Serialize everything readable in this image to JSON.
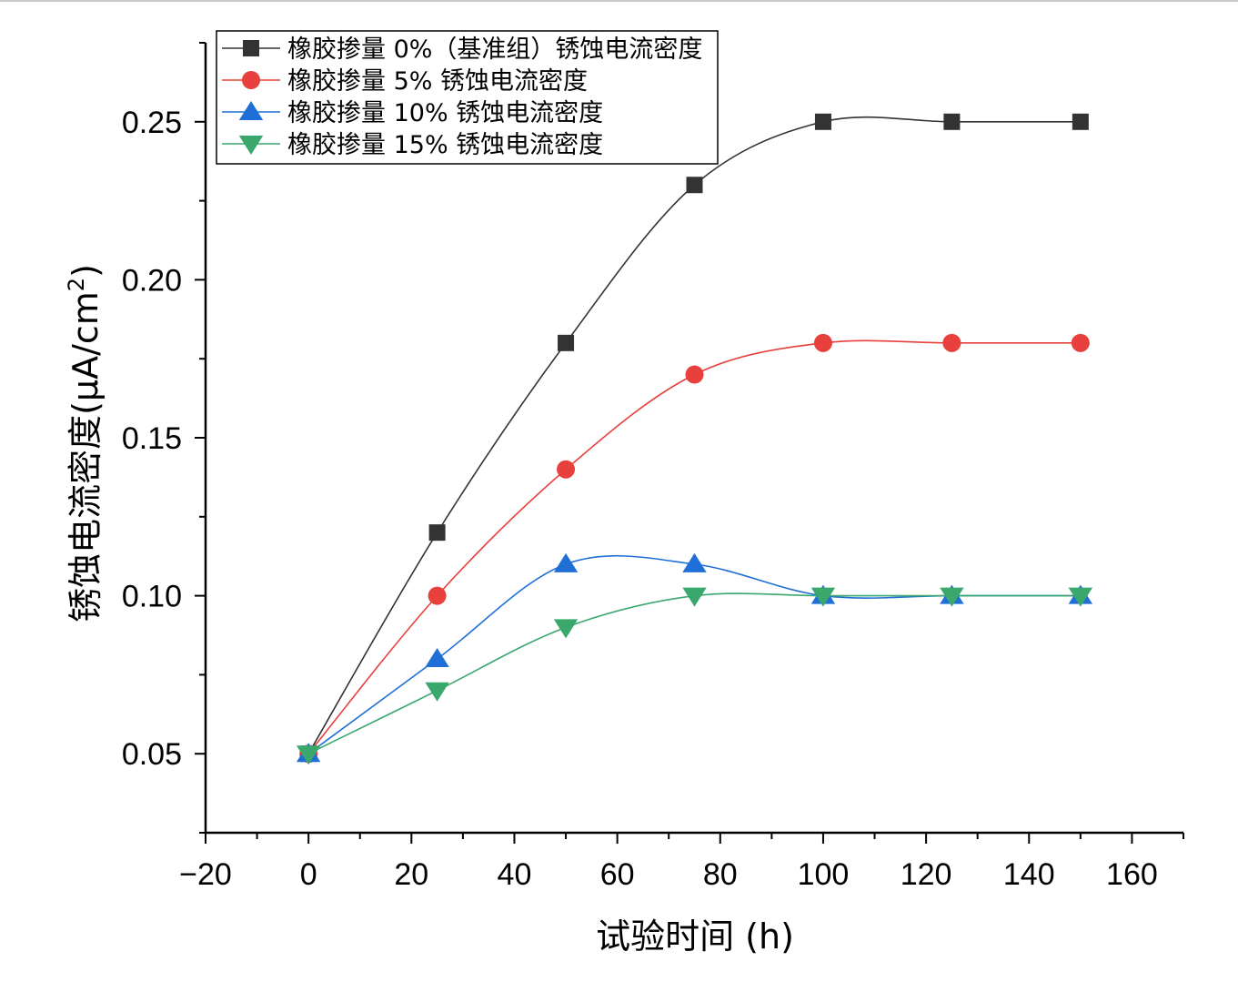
{
  "chart_data": {
    "type": "line",
    "title": "",
    "xlabel": "试验时间 (h)",
    "ylabel": "锈蚀电流密度(μA/cm²)",
    "ylabel_main": "锈蚀电流密度(μA/cm",
    "ylabel_sup": "2",
    "ylabel_close": ")",
    "xlim": [
      -20,
      170
    ],
    "ylim": [
      0.025,
      0.275
    ],
    "x_ticks": [
      -20,
      0,
      20,
      40,
      60,
      80,
      100,
      120,
      140,
      160
    ],
    "x_tick_labels": [
      "−20",
      "0",
      "20",
      "40",
      "60",
      "80",
      "100",
      "120",
      "140",
      "160"
    ],
    "y_ticks": [
      0.05,
      0.1,
      0.15,
      0.2,
      0.25
    ],
    "y_tick_labels": [
      "0.05",
      "0.10",
      "0.15",
      "0.20",
      "0.25"
    ],
    "grid": false,
    "legend_position": "top-left",
    "x": [
      0,
      25,
      50,
      75,
      100,
      125,
      150
    ],
    "series": [
      {
        "name": "橡胶掺量 0%（基准组）锈蚀电流密度",
        "color": "#333333",
        "marker": "square",
        "values": [
          0.05,
          0.12,
          0.18,
          0.23,
          0.25,
          0.25,
          0.25
        ]
      },
      {
        "name": "橡胶掺量 5% 锈蚀电流密度",
        "color": "#e8403d",
        "marker": "circle",
        "values": [
          0.05,
          0.1,
          0.14,
          0.17,
          0.18,
          0.18,
          0.18
        ]
      },
      {
        "name": "橡胶掺量 10% 锈蚀电流密度",
        "color": "#1f6fd6",
        "marker": "triangle-up",
        "values": [
          0.05,
          0.08,
          0.11,
          0.11,
          0.1,
          0.1,
          0.1
        ]
      },
      {
        "name": "橡胶掺量 15% 锈蚀电流密度",
        "color": "#3aa76d",
        "marker": "triangle-down",
        "values": [
          0.05,
          0.07,
          0.09,
          0.1,
          0.1,
          0.1,
          0.1
        ]
      }
    ]
  }
}
